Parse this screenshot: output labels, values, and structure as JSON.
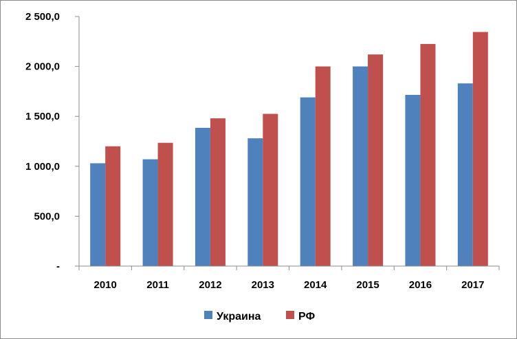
{
  "chart_data": {
    "type": "bar",
    "categories": [
      "2010",
      "2011",
      "2012",
      "2013",
      "2014",
      "2015",
      "2016",
      "2017"
    ],
    "series": [
      {
        "name": "Украина",
        "color": "#4f81bd",
        "values": [
          1030,
          1070,
          1385,
          1280,
          1690,
          2000,
          1715,
          1830
        ]
      },
      {
        "name": "РФ",
        "color": "#c0504d",
        "values": [
          1200,
          1235,
          1480,
          1525,
          2000,
          2120,
          2225,
          2345
        ]
      }
    ],
    "ylim": [
      0,
      2500
    ],
    "yticks": [
      0,
      500,
      1000,
      1500,
      2000,
      2500
    ],
    "ytick_labels": [
      "-",
      "500,0",
      "1 000,0",
      "1 500,0",
      "2 000,0",
      "2 500,0"
    ],
    "grid": false,
    "legend_position": "bottom"
  }
}
